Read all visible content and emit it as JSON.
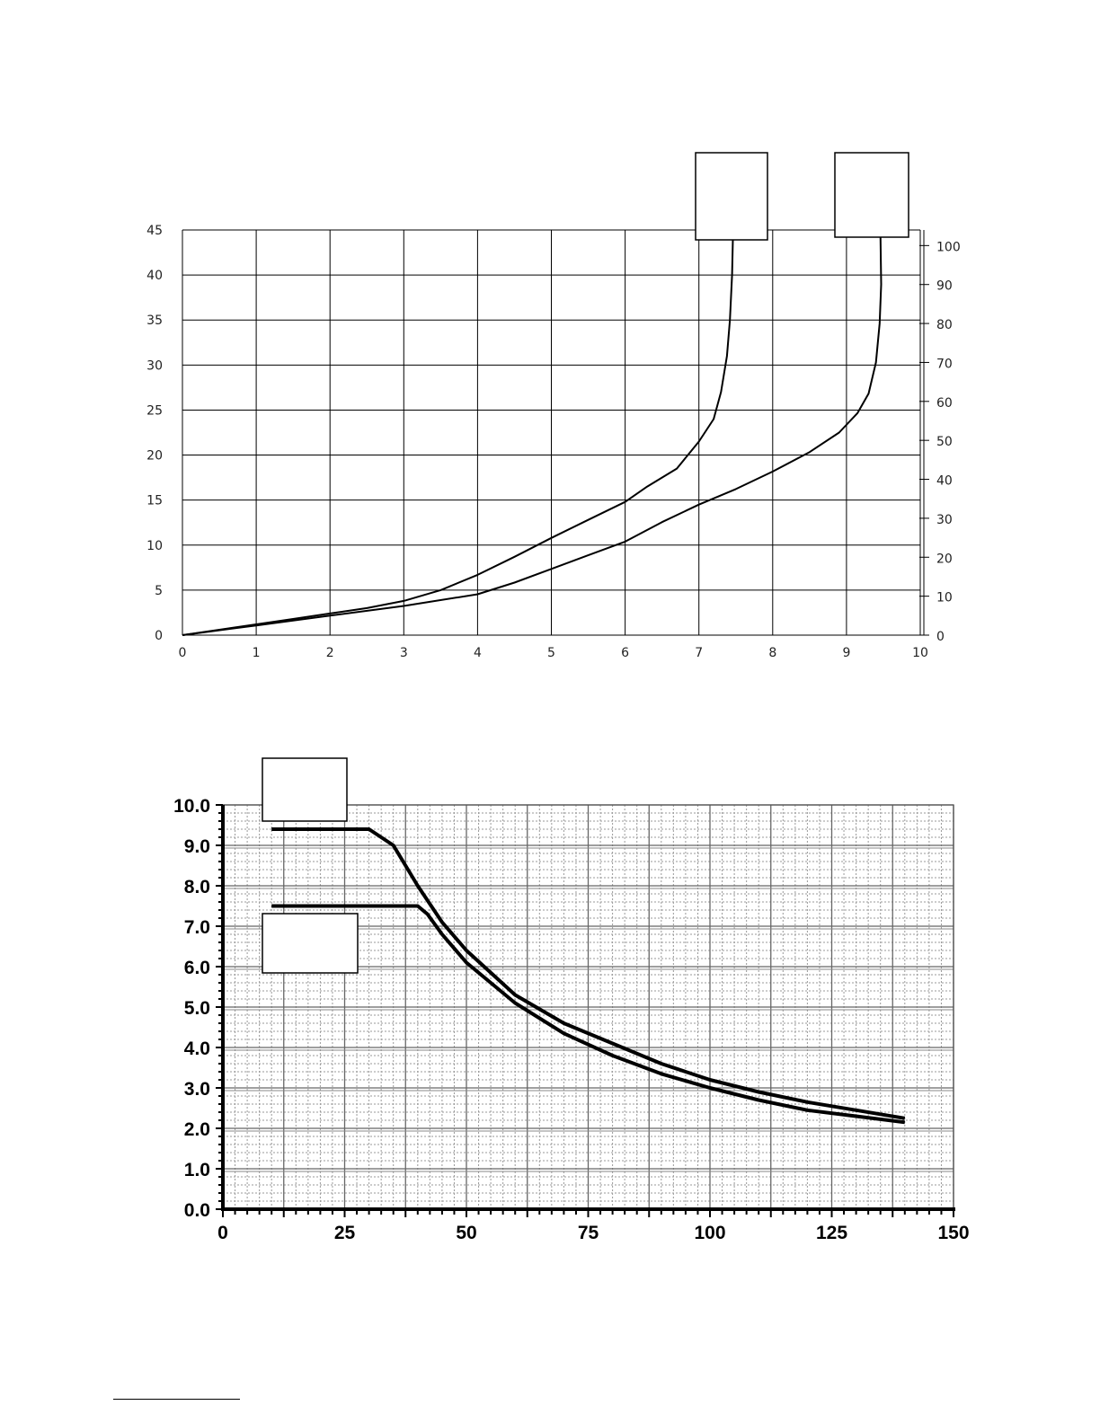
{
  "colors": {
    "line": "#000000",
    "grid_major": "#000000",
    "grid_minor": "#9a9a9a",
    "background": "#ffffff"
  },
  "chart_data": [
    {
      "type": "line",
      "grid": true,
      "legend": "empty boxes top-right, leader lines to curve tops",
      "xlim": [
        0,
        10
      ],
      "ylim": [
        0,
        45
      ],
      "y2lim": [
        0,
        104
      ],
      "x_ticks": [
        "0",
        "1",
        "2",
        "3",
        "4",
        "5",
        "6",
        "7",
        "8",
        "9",
        "10"
      ],
      "y_ticks": [
        "0",
        "5",
        "10",
        "15",
        "20",
        "25",
        "30",
        "35",
        "40",
        "45"
      ],
      "y2_ticks": [
        "0",
        "10",
        "20",
        "30",
        "40",
        "50",
        "60",
        "70",
        "80",
        "90",
        "100"
      ],
      "series": [
        {
          "axis": "left",
          "x": [
            0,
            0.5,
            1,
            1.5,
            2,
            2.5,
            3,
            3.5,
            4,
            4.5,
            5,
            5.5,
            6,
            6.3,
            6.7,
            7,
            7.2,
            7.3,
            7.38,
            7.42,
            7.45,
            7.46
          ],
          "y": [
            0,
            0.6,
            1.2,
            1.8,
            2.4,
            3.0,
            3.8,
            5.0,
            6.7,
            8.7,
            10.8,
            12.8,
            14.8,
            16.5,
            18.5,
            21.5,
            24,
            27,
            31,
            35,
            40,
            44
          ]
        },
        {
          "axis": "right",
          "x": [
            0,
            1,
            2,
            3,
            4,
            4.5,
            5,
            5.5,
            6,
            6.5,
            7,
            7.5,
            8,
            8.5,
            8.9,
            9.15,
            9.3,
            9.4,
            9.45,
            9.47,
            9.46
          ],
          "y": [
            0,
            2.5,
            5,
            7.5,
            10.5,
            13.5,
            17,
            20.5,
            24,
            29,
            33.5,
            37.5,
            42,
            47,
            52,
            57,
            62,
            70,
            80,
            90,
            103
          ]
        }
      ]
    },
    {
      "type": "line",
      "grid": true,
      "legend": "empty boxes top-left, overlapping curve start",
      "xlim": [
        0,
        150
      ],
      "ylim": [
        0,
        10
      ],
      "x_ticks": [
        "0",
        "25",
        "50",
        "75",
        "100",
        "125",
        "150"
      ],
      "y_ticks": [
        "0.0",
        "1.0",
        "2.0",
        "3.0",
        "4.0",
        "5.0",
        "6.0",
        "7.0",
        "8.0",
        "9.0",
        "10.0"
      ],
      "series": [
        {
          "x": [
            10,
            20,
            30,
            35,
            40,
            45,
            50,
            60,
            70,
            80,
            90,
            100,
            110,
            120,
            130,
            140
          ],
          "y": [
            9.4,
            9.4,
            9.4,
            9.0,
            8.0,
            7.1,
            6.4,
            5.3,
            4.6,
            4.1,
            3.6,
            3.2,
            2.9,
            2.65,
            2.45,
            2.25
          ]
        },
        {
          "x": [
            10,
            20,
            30,
            40,
            42,
            45,
            50,
            60,
            70,
            80,
            90,
            100,
            110,
            120,
            130,
            140
          ],
          "y": [
            7.5,
            7.5,
            7.5,
            7.5,
            7.3,
            6.8,
            6.1,
            5.1,
            4.35,
            3.8,
            3.35,
            3.0,
            2.7,
            2.45,
            2.3,
            2.15
          ]
        }
      ]
    }
  ]
}
